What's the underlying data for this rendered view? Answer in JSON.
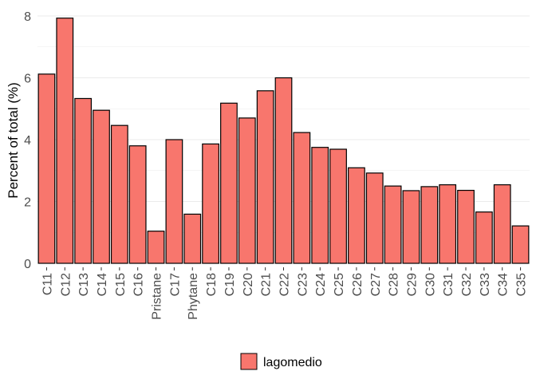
{
  "chart_data": {
    "type": "bar",
    "categories": [
      "C11",
      "C12",
      "C13",
      "C14",
      "C15",
      "C16",
      "Pristane",
      "C17",
      "Phytane",
      "C18",
      "C19",
      "C20",
      "C21",
      "C22",
      "C23",
      "C24",
      "C25",
      "C26",
      "C27",
      "C28",
      "C29",
      "C30",
      "C31",
      "C32",
      "C33",
      "C34",
      "C35"
    ],
    "series": [
      {
        "name": "lagomedio",
        "color": "#F8766D",
        "values": [
          6.12,
          7.93,
          5.33,
          4.95,
          4.46,
          3.8,
          1.04,
          4.0,
          1.59,
          3.86,
          5.18,
          4.7,
          5.58,
          6.0,
          4.23,
          3.75,
          3.69,
          3.09,
          2.92,
          2.5,
          2.35,
          2.48,
          2.54,
          2.36,
          1.66,
          2.54,
          1.21
        ]
      }
    ],
    "xlabel": "",
    "ylabel": "Percent of total (%)",
    "ylim": [
      0,
      8.2
    ],
    "yticks": [
      0,
      2,
      4,
      6,
      8
    ],
    "grid": true,
    "legend": {
      "position": "bottom",
      "entries": [
        "lagomedio"
      ]
    },
    "bar_outline_color": "#000000",
    "grid_color": "#ebebeb"
  }
}
